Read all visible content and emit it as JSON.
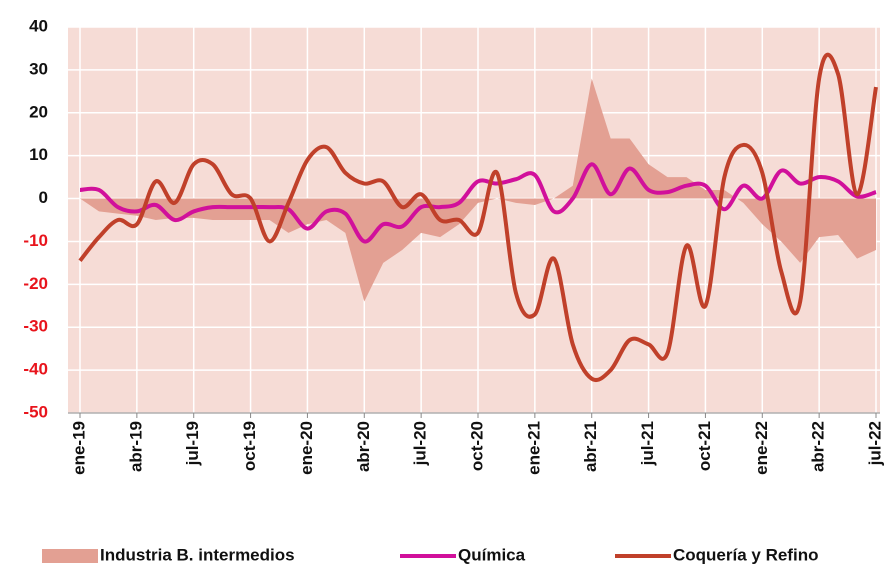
{
  "chart_data": {
    "type": "line",
    "categories": [
      "ene-19",
      null,
      null,
      "abr-19",
      null,
      null,
      "jul-19",
      null,
      null,
      "oct-19",
      null,
      null,
      "ene-20",
      null,
      null,
      "abr-20",
      null,
      null,
      "jul-20",
      null,
      null,
      "oct-20",
      null,
      null,
      "ene-21",
      null,
      null,
      "abr-21",
      null,
      null,
      "jul-21",
      null,
      null,
      "oct-21",
      null,
      null,
      "ene-22",
      null,
      null,
      "abr-22",
      null,
      null,
      "jul-22"
    ],
    "series": [
      {
        "name": "Industria B. intermedios",
        "type": "area",
        "color": "#e3a093",
        "values": [
          0,
          -3,
          -3.5,
          -4,
          -5,
          -4.5,
          -4.5,
          -5,
          -5,
          -5,
          -5,
          -8,
          -6,
          -5,
          -8,
          -24,
          -15,
          -12,
          -8,
          -9,
          -6,
          -1,
          0,
          -1,
          -1.5,
          0,
          3,
          28,
          14,
          14,
          8,
          5,
          5,
          2,
          2,
          -1,
          -6,
          -10,
          -15,
          -9,
          -8.5,
          -14,
          -12
        ]
      },
      {
        "name": "Química",
        "type": "line",
        "color": "#d1109b",
        "values": [
          2,
          2,
          -2,
          -3,
          -1.5,
          -5,
          -3,
          -2,
          -2,
          -2,
          -2,
          -2.5,
          -7,
          -3,
          -3.5,
          -10,
          -6,
          -6.5,
          -2,
          -2,
          -1,
          4,
          3.5,
          4.5,
          5.5,
          -3,
          0,
          8,
          1,
          7,
          2,
          1.5,
          3,
          3,
          -2.5,
          3,
          0,
          6.5,
          3.5,
          5,
          4,
          0.5,
          1.5
        ]
      },
      {
        "name": "Coquería y Refino",
        "type": "line",
        "color": "#c0402a",
        "values": [
          -14.5,
          -9,
          -5,
          -6,
          4,
          -1,
          8,
          8,
          1,
          0,
          -10,
          -1,
          9,
          12,
          6,
          3.5,
          4,
          -2,
          1,
          -5,
          -5,
          -8,
          6,
          -22,
          -27,
          -14,
          -34,
          -42,
          -40,
          -33,
          -34,
          -36,
          -11,
          -25,
          5,
          12.5,
          6,
          -17,
          -24,
          28,
          29,
          1,
          26
        ]
      }
    ],
    "ylim": [
      -50,
      40
    ],
    "yticks": [
      -50,
      -40,
      -30,
      -20,
      -10,
      0,
      10,
      20,
      30,
      40
    ],
    "grid": true
  }
}
